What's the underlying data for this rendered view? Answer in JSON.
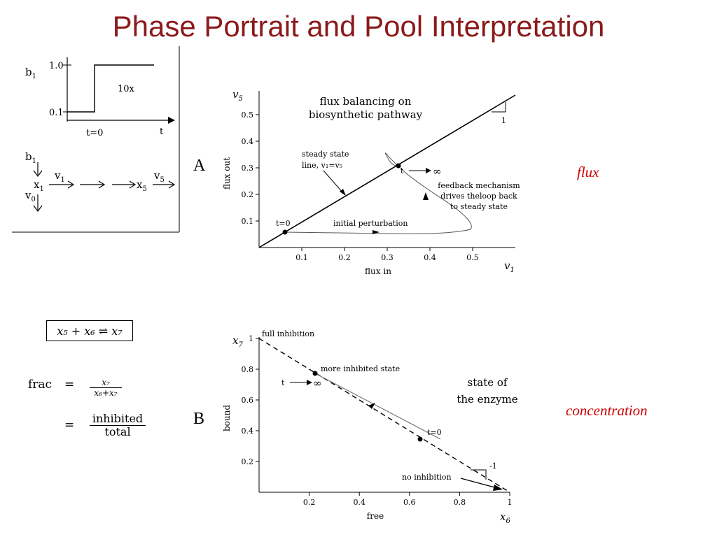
{
  "title": "Phase Portrait and Pool Interpretation",
  "inset": {
    "b1": "b",
    "b1_sub": "1",
    "y_high": "1.0",
    "y_low": "0.1",
    "step_factor": "10x",
    "t0_label": "t=0",
    "t_label": "t",
    "pathway": {
      "b_label": "b",
      "b_sub": "1",
      "x1": "x",
      "x1_sub": "1",
      "v1": "v",
      "v1_sub": "1",
      "x5": "x",
      "x5_sub": "5",
      "v5": "v",
      "v5_sub": "5",
      "v0": "v",
      "v0_sub": "0"
    }
  },
  "panel_a": {
    "letter": "A",
    "side_label": "flux",
    "annotation_top_line1": "flux balancing on",
    "annotation_top_line2": "biosynthetic pathway",
    "steady_state_line1": "steady state",
    "steady_state_line2": "line, v₁=v₅",
    "t_infinity": "t",
    "infinity": "∞",
    "feedback_line1": "feedback mechanism",
    "feedback_line2": "drives theloop back",
    "feedback_line3": "to steady state",
    "t0": "t=0",
    "initial_perturbation": "initial perturbation",
    "slope_label": "1",
    "xlabel": "flux in",
    "ylabel": "flux out",
    "x_axis_var": "v",
    "x_axis_sub": "1",
    "y_axis_var": "v",
    "y_axis_sub": "5",
    "x_ticks": [
      "0.1",
      "0.2",
      "0.3",
      "0.4",
      "0.5"
    ],
    "y_ticks": [
      "0.1",
      "0.2",
      "0.3",
      "0.4",
      "0.5"
    ]
  },
  "panel_b": {
    "letter": "B",
    "side_label": "concentration",
    "full_inhibition": "full inhibition",
    "more_inhibited": "more inhibited state",
    "t_infinity": "t",
    "infinity": "∞",
    "state_line1": "state of",
    "state_line2": "the enzyme",
    "t0": "t=0",
    "slope_label": "-1",
    "no_inhibition": "no inhibition",
    "xlabel": "free",
    "ylabel": "bound",
    "x_axis_var": "x",
    "x_axis_sub": "6",
    "y_axis_var": "x",
    "y_axis_sub": "7",
    "x_ticks": [
      "0.2",
      "0.4",
      "0.6",
      "0.8",
      "1"
    ],
    "y_ticks": [
      "0.2",
      "0.4",
      "0.6",
      "0.8",
      "1"
    ]
  },
  "equations": {
    "reaction": "x₅ + x₆ ⇌ x₇",
    "frac": "frac",
    "equals": "=",
    "num1": "x₇",
    "den1": "x₆+x₇",
    "num2": "inhibited",
    "den2": "total"
  }
}
